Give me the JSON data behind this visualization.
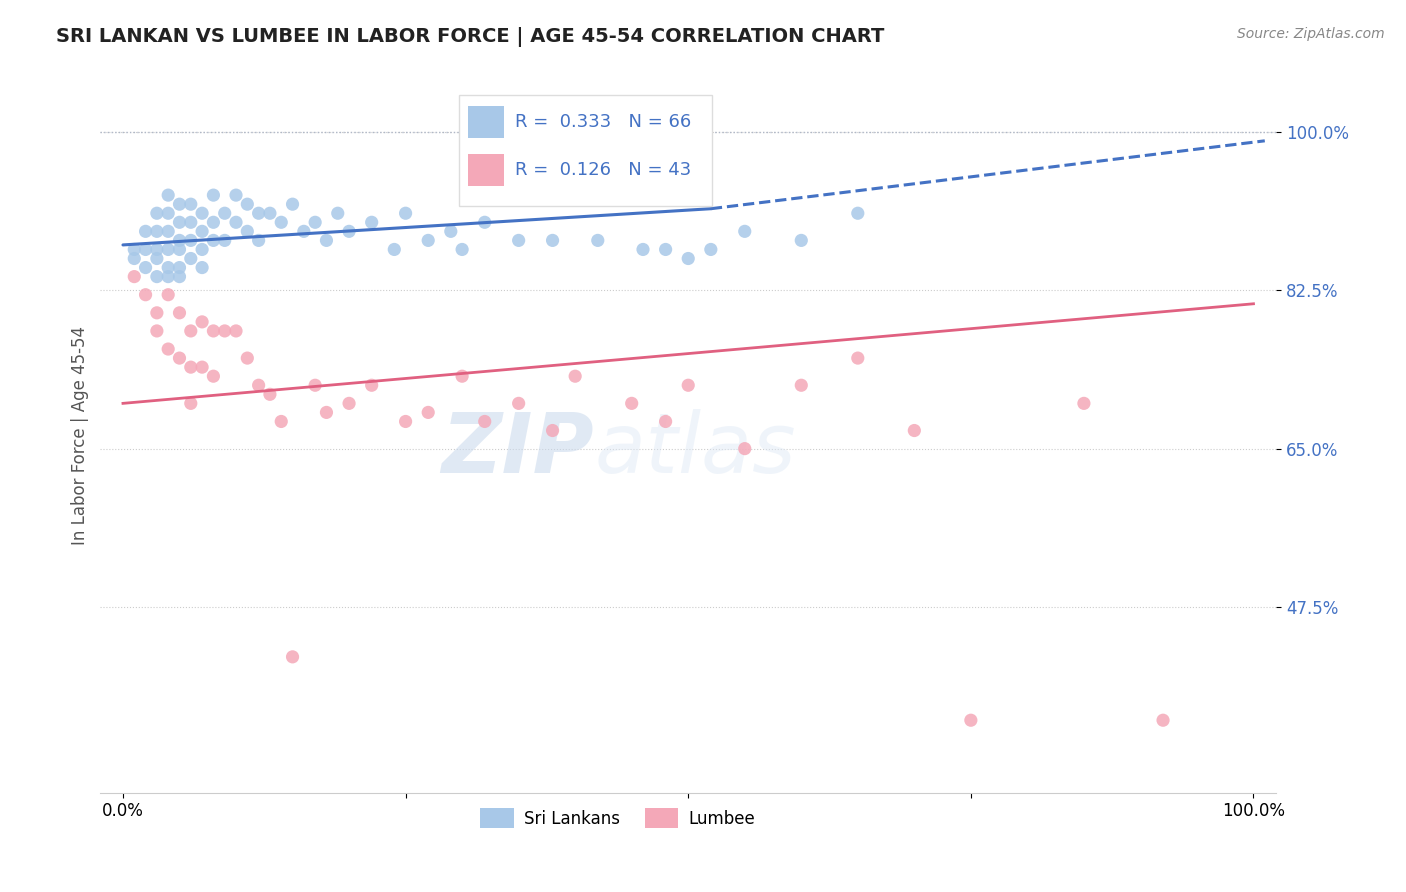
{
  "title": "SRI LANKAN VS LUMBEE IN LABOR FORCE | AGE 45-54 CORRELATION CHART",
  "source": "Source: ZipAtlas.com",
  "ylabel": "In Labor Force | Age 45-54",
  "xlim": [
    -0.02,
    1.02
  ],
  "ylim": [
    0.27,
    1.06
  ],
  "yticks": [
    0.475,
    0.65,
    0.825,
    1.0
  ],
  "ytick_labels": [
    "47.5%",
    "65.0%",
    "82.5%",
    "100.0%"
  ],
  "blue_R": 0.333,
  "blue_N": 66,
  "pink_R": 0.126,
  "pink_N": 43,
  "blue_color": "#a8c8e8",
  "pink_color": "#f4a8b8",
  "blue_line_color": "#4472c4",
  "pink_line_color": "#e06080",
  "watermark_zip": "ZIP",
  "watermark_atlas": "atlas",
  "legend_label_blue": "Sri Lankans",
  "legend_label_pink": "Lumbee",
  "sri_lankan_x": [
    0.01,
    0.01,
    0.02,
    0.02,
    0.02,
    0.03,
    0.03,
    0.03,
    0.03,
    0.03,
    0.04,
    0.04,
    0.04,
    0.04,
    0.04,
    0.04,
    0.05,
    0.05,
    0.05,
    0.05,
    0.05,
    0.05,
    0.06,
    0.06,
    0.06,
    0.06,
    0.07,
    0.07,
    0.07,
    0.07,
    0.08,
    0.08,
    0.08,
    0.09,
    0.09,
    0.1,
    0.1,
    0.11,
    0.11,
    0.12,
    0.12,
    0.13,
    0.14,
    0.15,
    0.16,
    0.17,
    0.18,
    0.19,
    0.2,
    0.22,
    0.24,
    0.25,
    0.27,
    0.29,
    0.3,
    0.32,
    0.35,
    0.38,
    0.42,
    0.46,
    0.48,
    0.5,
    0.52,
    0.55,
    0.6,
    0.65
  ],
  "sri_lankan_y": [
    0.87,
    0.86,
    0.89,
    0.87,
    0.85,
    0.91,
    0.89,
    0.87,
    0.86,
    0.84,
    0.93,
    0.91,
    0.89,
    0.87,
    0.85,
    0.84,
    0.92,
    0.9,
    0.88,
    0.87,
    0.85,
    0.84,
    0.92,
    0.9,
    0.88,
    0.86,
    0.91,
    0.89,
    0.87,
    0.85,
    0.93,
    0.9,
    0.88,
    0.91,
    0.88,
    0.93,
    0.9,
    0.92,
    0.89,
    0.91,
    0.88,
    0.91,
    0.9,
    0.92,
    0.89,
    0.9,
    0.88,
    0.91,
    0.89,
    0.9,
    0.87,
    0.91,
    0.88,
    0.89,
    0.87,
    0.9,
    0.88,
    0.88,
    0.88,
    0.87,
    0.87,
    0.86,
    0.87,
    0.89,
    0.88,
    0.91
  ],
  "lumbee_x": [
    0.01,
    0.02,
    0.03,
    0.03,
    0.04,
    0.04,
    0.05,
    0.05,
    0.06,
    0.06,
    0.06,
    0.07,
    0.07,
    0.08,
    0.08,
    0.09,
    0.1,
    0.11,
    0.12,
    0.13,
    0.14,
    0.15,
    0.17,
    0.18,
    0.2,
    0.22,
    0.25,
    0.27,
    0.3,
    0.32,
    0.35,
    0.38,
    0.4,
    0.45,
    0.48,
    0.5,
    0.55,
    0.6,
    0.65,
    0.7,
    0.75,
    0.85,
    0.92
  ],
  "lumbee_y": [
    0.84,
    0.82,
    0.8,
    0.78,
    0.82,
    0.76,
    0.8,
    0.75,
    0.78,
    0.74,
    0.7,
    0.79,
    0.74,
    0.78,
    0.73,
    0.78,
    0.78,
    0.75,
    0.72,
    0.71,
    0.68,
    0.42,
    0.72,
    0.69,
    0.7,
    0.72,
    0.68,
    0.69,
    0.73,
    0.68,
    0.7,
    0.67,
    0.73,
    0.7,
    0.68,
    0.72,
    0.65,
    0.72,
    0.75,
    0.67,
    0.35,
    0.7,
    0.35
  ],
  "blue_trend_x0": 0.0,
  "blue_trend_x_solid_end": 0.52,
  "blue_trend_x_end": 1.01,
  "blue_trend_y_start": 0.875,
  "blue_trend_y_solid_end": 0.915,
  "blue_trend_y_end": 0.99,
  "pink_trend_x0": 0.0,
  "pink_trend_x_end": 1.0,
  "pink_trend_y_start": 0.7,
  "pink_trend_y_end": 0.81
}
